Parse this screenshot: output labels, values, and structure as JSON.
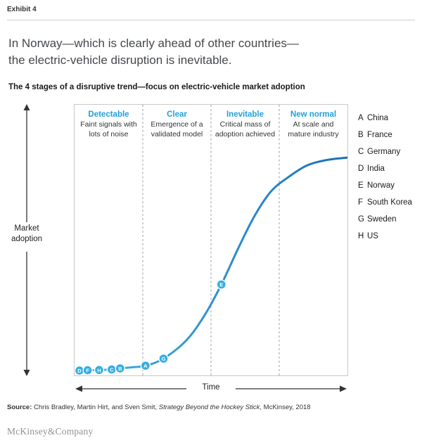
{
  "exhibit_label": "Exhibit 4",
  "title": {
    "line1": "In Norway—which is clearly ahead of other countries—",
    "line2": "the electric-vehicle disruption is inevitable."
  },
  "subtitle": "The 4 stages of a disruptive trend—focus on electric-vehicle market adoption",
  "y_axis_label_line1": "Market",
  "y_axis_label_line2": "adoption",
  "x_axis_label": "Time",
  "stages": [
    {
      "name": "Detectable",
      "description": "Faint signals with lots of noise"
    },
    {
      "name": "Clear",
      "description": "Emergence of a validated model"
    },
    {
      "name": "Inevitable",
      "description": "Critical mass of adoption achieved"
    },
    {
      "name": "New normal",
      "description": "At scale and mature industry"
    }
  ],
  "legend": [
    {
      "key": "A",
      "label": "China"
    },
    {
      "key": "B",
      "label": "France"
    },
    {
      "key": "C",
      "label": "Germany"
    },
    {
      "key": "D",
      "label": "India"
    },
    {
      "key": "E",
      "label": "Norway"
    },
    {
      "key": "F",
      "label": "South Korea"
    },
    {
      "key": "G",
      "label": "Sweden"
    },
    {
      "key": "H",
      "label": "US"
    }
  ],
  "source": {
    "label": "Source:",
    "authors": " Chris Bradley, Martin Hirt, and Sven Smit, ",
    "book": "Strategy Beyond the Hockey Stick",
    "suffix": ", McKinsey, 2018"
  },
  "brand": "McKinsey&Company",
  "colors": {
    "accent_blue": "#21a0dc",
    "curve_start": "#41b4e6",
    "curve_end": "#1d6fb8",
    "marker_fill": "#36ade2"
  },
  "chart_data": {
    "type": "line",
    "title": "The 4 stages of a disruptive trend—focus on electric-vehicle market adoption",
    "xlabel": "Time",
    "ylabel": "Market adoption",
    "x_range": [
      0,
      100
    ],
    "y_range": [
      0,
      100
    ],
    "grid": false,
    "legend_position": "right-outside",
    "stage_boundaries_pct": [
      25,
      50,
      75
    ],
    "curve_shape": "s-curve",
    "curve_samples": [
      [
        1.8,
        1.8
      ],
      [
        4.8,
        1.9
      ],
      [
        9,
        2.0
      ],
      [
        13.6,
        2.2
      ],
      [
        16.7,
        2.6
      ],
      [
        21,
        3.0
      ],
      [
        26,
        3.6
      ],
      [
        32.6,
        6.2
      ],
      [
        41,
        13
      ],
      [
        47.5,
        22
      ],
      [
        53.8,
        33.6
      ],
      [
        60,
        47
      ],
      [
        66,
        59
      ],
      [
        72,
        68
      ],
      [
        78,
        73
      ],
      [
        85,
        77.5
      ],
      [
        92,
        79.5
      ],
      [
        100,
        80.5
      ]
    ],
    "points": [
      {
        "label": "D",
        "country": "India",
        "stage": "Detectable",
        "time": 1.8,
        "adoption": 1.8
      },
      {
        "label": "F",
        "country": "South Korea",
        "stage": "Detectable",
        "time": 4.8,
        "adoption": 1.9
      },
      {
        "label": "H",
        "country": "US",
        "stage": "Detectable",
        "time": 9,
        "adoption": 2.0
      },
      {
        "label": "C",
        "country": "Germany",
        "stage": "Detectable",
        "time": 13.6,
        "adoption": 2.2
      },
      {
        "label": "B",
        "country": "France",
        "stage": "Detectable",
        "time": 16.7,
        "adoption": 2.6
      },
      {
        "label": "A",
        "country": "China",
        "stage": "Clear",
        "time": 26,
        "adoption": 3.6
      },
      {
        "label": "G",
        "country": "Sweden",
        "stage": "Clear",
        "time": 32.6,
        "adoption": 6.2
      },
      {
        "label": "E",
        "country": "Norway",
        "stage": "Inevitable",
        "time": 53.8,
        "adoption": 33.6
      }
    ]
  }
}
